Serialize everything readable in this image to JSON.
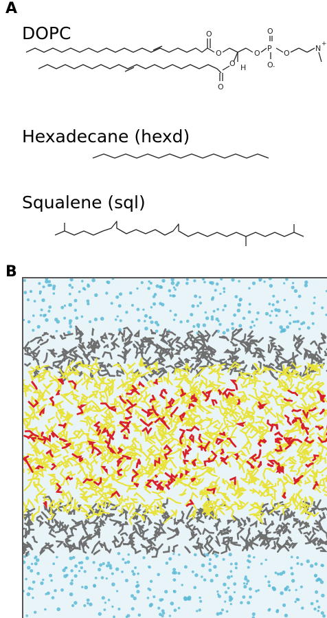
{
  "panel_a": {
    "letter": "A",
    "molecules": [
      {
        "name": "DOPC",
        "atoms": {
          "o1": "O",
          "o2": "O",
          "o3": "O",
          "o4": "O",
          "o5": "O",
          "o6": "O",
          "o7": "O",
          "p": "P",
          "h": "H",
          "n": "N",
          "plus": "+",
          "minus": "-"
        }
      },
      {
        "name": "Hexadecane (hexd)"
      },
      {
        "name": "Squalene (sql)"
      }
    ]
  },
  "panel_b": {
    "letter": "B",
    "legend_colors": {
      "water": "#5cb8d6",
      "headgroup": "#6f6f6f",
      "lipid_tail": "#e8e23a",
      "solute": "#d8202a"
    }
  }
}
